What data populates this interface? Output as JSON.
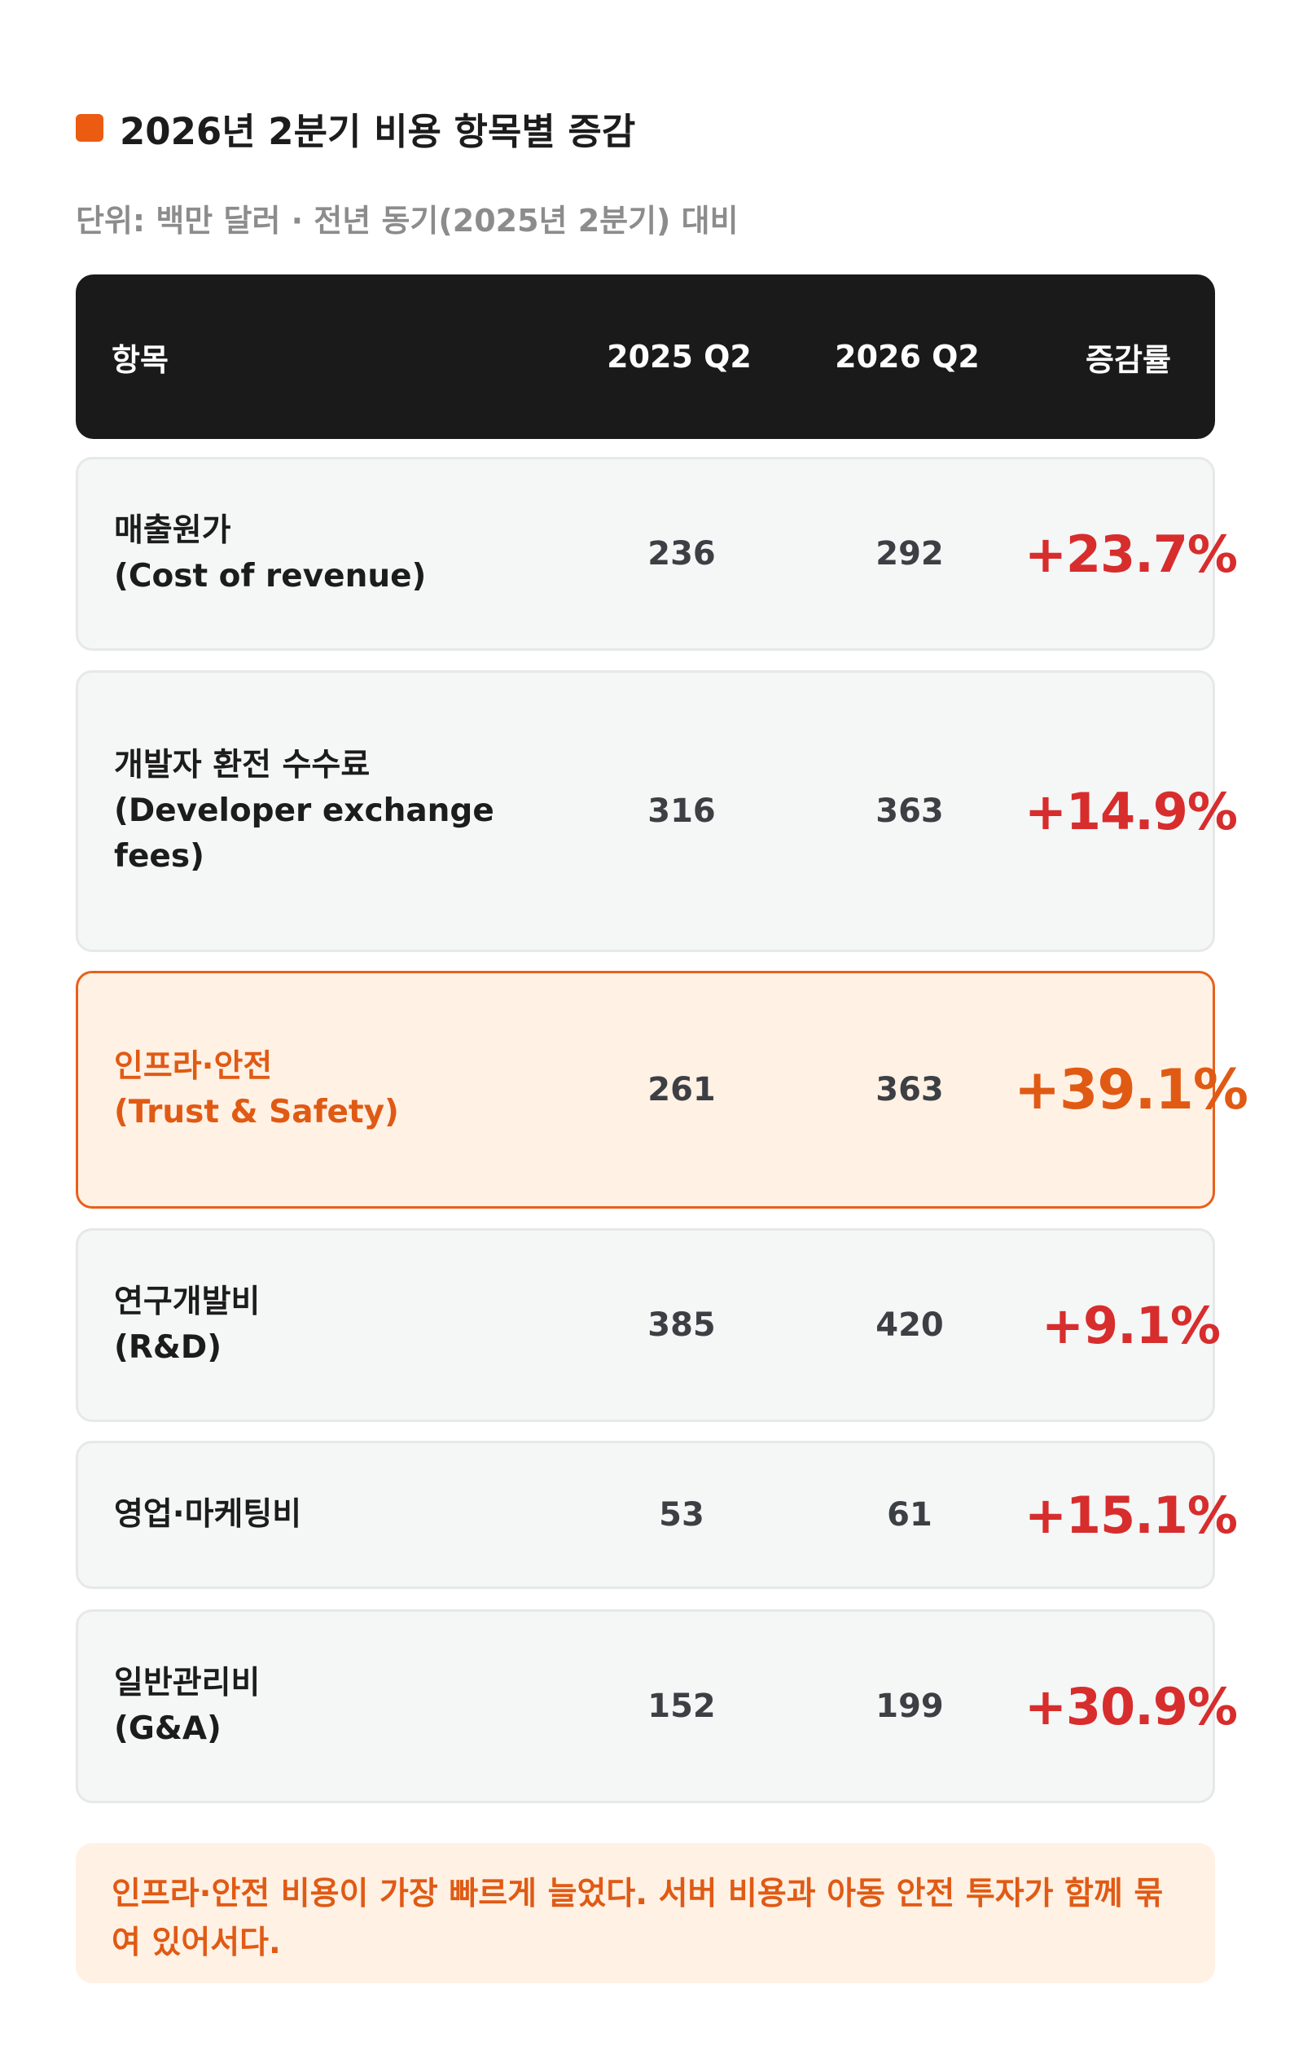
{
  "title": "2026년 2분기 비용 항목별 증감",
  "subtitle": "단위: 백만 달러 · 전년 동기(2025년 2분기) 대비",
  "table": {
    "headers": {
      "item": "항목",
      "q2_2025": "2025 Q2",
      "q2_2026": "2026 Q2",
      "change": "증감률"
    },
    "rows": [
      {
        "label": "매출원가\n(Cost of revenue)",
        "q2_2025": "236",
        "q2_2026": "292",
        "change": "+23.7%",
        "highlighted": false
      },
      {
        "label": "개발자 환전 수수료\n(Developer exchange\nfees)",
        "q2_2025": "316",
        "q2_2026": "363",
        "change": "+14.9%",
        "highlighted": false
      },
      {
        "label": "인프라·안전\n(Trust & Safety)",
        "q2_2025": "261",
        "q2_2026": "363",
        "change": "+39.1%",
        "highlighted": true
      },
      {
        "label": "연구개발비\n(R&D)",
        "q2_2025": "385",
        "q2_2026": "420",
        "change": "+9.1%",
        "highlighted": false
      },
      {
        "label": "영업·마케팅비",
        "q2_2025": "53",
        "q2_2026": "61",
        "change": "+15.1%",
        "highlighted": false
      },
      {
        "label": "일반관리비\n(G&A)",
        "q2_2025": "152",
        "q2_2026": "199",
        "change": "+30.9%",
        "highlighted": false
      }
    ]
  },
  "note": "인프라·안전 비용이 가장 빠르게 늘었다. 서버 비용과 아동 안전 투자가 함께 묶여 있어서다.",
  "colors": {
    "accent": "#e8601c",
    "increase": "#d72d2d",
    "header_bg": "#1a1a1a",
    "highlight_bg": "#fff1e4"
  }
}
